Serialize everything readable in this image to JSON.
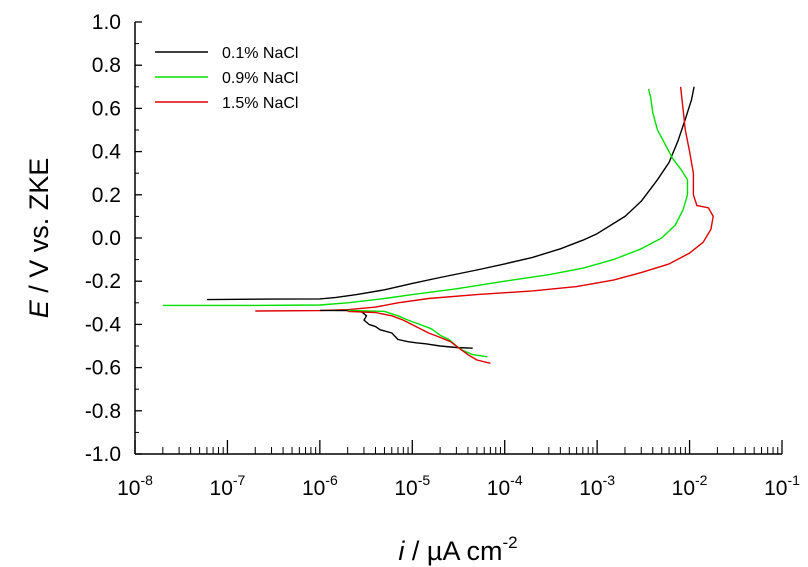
{
  "chart_data": {
    "type": "line",
    "title": "",
    "xscale": "log",
    "xlim": [
      1e-08,
      0.1
    ],
    "ylim": [
      -1.0,
      1.0
    ],
    "grid": false,
    "legend_position": "top-left",
    "xlabel": {
      "italic": "i",
      "rest": " / µA cm",
      "sup": "-2"
    },
    "ylabel": {
      "italic": "E",
      "rest": " / V vs. ZKE"
    },
    "x_ticks": [
      {
        "exp": "-8",
        "value": 1e-08
      },
      {
        "exp": "-7",
        "value": 1e-07
      },
      {
        "exp": "-6",
        "value": 1e-06
      },
      {
        "exp": "-5",
        "value": 1e-05
      },
      {
        "exp": "-4",
        "value": 0.0001
      },
      {
        "exp": "-3",
        "value": 0.001
      },
      {
        "exp": "-2",
        "value": 0.01
      },
      {
        "exp": "-1",
        "value": 0.1
      }
    ],
    "x_tick_base": "10",
    "y_ticks": [
      "-1.0",
      "-0.8",
      "-0.6",
      "-0.4",
      "-0.2",
      "0.0",
      "0.2",
      "0.4",
      "0.6",
      "0.8",
      "1.0"
    ],
    "series": [
      {
        "name": "0.1% NaCl",
        "color": "#000000",
        "points": [
          [
            6e-08,
            -0.285
          ],
          [
            3e-07,
            -0.283
          ],
          [
            1e-06,
            -0.282
          ],
          [
            1.5e-06,
            -0.275
          ],
          [
            2.5e-06,
            -0.262
          ],
          [
            5e-06,
            -0.24
          ],
          [
            1e-05,
            -0.21
          ],
          [
            2e-05,
            -0.183
          ],
          [
            5e-05,
            -0.148
          ],
          [
            0.0001,
            -0.12
          ],
          [
            0.0002,
            -0.09
          ],
          [
            0.0004,
            -0.05
          ],
          [
            0.0007,
            -0.01
          ],
          [
            0.001,
            0.02
          ],
          [
            0.002,
            0.1
          ],
          [
            0.003,
            0.17
          ],
          [
            0.0045,
            0.27
          ],
          [
            0.006,
            0.35
          ],
          [
            0.0075,
            0.45
          ],
          [
            0.009,
            0.55
          ],
          [
            0.0105,
            0.64
          ],
          [
            0.0112,
            0.7
          ]
        ]
      },
      {
        "name": "0.9% NaCl",
        "color": "#00e000",
        "points": [
          [
            2e-08,
            -0.312
          ],
          [
            2e-07,
            -0.312
          ],
          [
            1e-06,
            -0.31
          ],
          [
            2e-06,
            -0.3
          ],
          [
            5e-06,
            -0.28
          ],
          [
            1e-05,
            -0.262
          ],
          [
            3e-05,
            -0.235
          ],
          [
            0.0001,
            -0.2
          ],
          [
            0.0003,
            -0.17
          ],
          [
            0.0007,
            -0.14
          ],
          [
            0.0015,
            -0.1
          ],
          [
            0.003,
            -0.05
          ],
          [
            0.005,
            0.0
          ],
          [
            0.007,
            0.06
          ],
          [
            0.0085,
            0.13
          ],
          [
            0.0095,
            0.2
          ],
          [
            0.0095,
            0.27
          ],
          [
            0.008,
            0.32
          ],
          [
            0.0065,
            0.37
          ],
          [
            0.0055,
            0.43
          ],
          [
            0.0045,
            0.5
          ],
          [
            0.004,
            0.58
          ],
          [
            0.0038,
            0.65
          ],
          [
            0.0036,
            0.69
          ]
        ]
      },
      {
        "name": "1.5% NaCl",
        "color": "#e00000",
        "points": [
          [
            2e-07,
            -0.338
          ],
          [
            1e-06,
            -0.336
          ],
          [
            2e-06,
            -0.332
          ],
          [
            4e-06,
            -0.32
          ],
          [
            7e-06,
            -0.3
          ],
          [
            1.5e-05,
            -0.28
          ],
          [
            5e-05,
            -0.262
          ],
          [
            0.0002,
            -0.245
          ],
          [
            0.0006,
            -0.225
          ],
          [
            0.0015,
            -0.195
          ],
          [
            0.003,
            -0.16
          ],
          [
            0.006,
            -0.12
          ],
          [
            0.01,
            -0.07
          ],
          [
            0.014,
            -0.02
          ],
          [
            0.017,
            0.04
          ],
          [
            0.018,
            0.1
          ],
          [
            0.016,
            0.14
          ],
          [
            0.012,
            0.15
          ],
          [
            0.011,
            0.2
          ],
          [
            0.011,
            0.3
          ],
          [
            0.01,
            0.4
          ],
          [
            0.009,
            0.5
          ],
          [
            0.0085,
            0.6
          ],
          [
            0.008,
            0.7
          ]
        ]
      },
      {
        "name": "",
        "color": "#000000",
        "points": [
          [
            1e-06,
            -0.335
          ],
          [
            2e-06,
            -0.336
          ],
          [
            2.8e-06,
            -0.34
          ],
          [
            3.2e-06,
            -0.36
          ],
          [
            3e-06,
            -0.38
          ],
          [
            3.4e-06,
            -0.4
          ],
          [
            4e-06,
            -0.41
          ],
          [
            4.5e-06,
            -0.425
          ],
          [
            6e-06,
            -0.44
          ],
          [
            7e-06,
            -0.47
          ],
          [
            9e-06,
            -0.48
          ],
          [
            1.1e-05,
            -0.485
          ],
          [
            1.4e-05,
            -0.49
          ],
          [
            2e-05,
            -0.5
          ],
          [
            3e-05,
            -0.507
          ],
          [
            4.5e-05,
            -0.51
          ]
        ]
      },
      {
        "name": "",
        "color": "#00e000",
        "points": [
          [
            2e-06,
            -0.335
          ],
          [
            5e-06,
            -0.34
          ],
          [
            7e-06,
            -0.36
          ],
          [
            9e-06,
            -0.38
          ],
          [
            1.2e-05,
            -0.4
          ],
          [
            1.6e-05,
            -0.42
          ],
          [
            2e-05,
            -0.45
          ],
          [
            2.5e-05,
            -0.47
          ],
          [
            3e-05,
            -0.5
          ],
          [
            3.5e-05,
            -0.52
          ],
          [
            4.5e-05,
            -0.54
          ],
          [
            6.5e-05,
            -0.55
          ]
        ]
      },
      {
        "name": "",
        "color": "#e00000",
        "points": [
          [
            2e-06,
            -0.34
          ],
          [
            4e-06,
            -0.345
          ],
          [
            6e-06,
            -0.36
          ],
          [
            8e-06,
            -0.38
          ],
          [
            1.1e-05,
            -0.41
          ],
          [
            1.5e-05,
            -0.44
          ],
          [
            2e-05,
            -0.46
          ],
          [
            2.6e-05,
            -0.48
          ],
          [
            3.2e-05,
            -0.51
          ],
          [
            4e-05,
            -0.54
          ],
          [
            5e-05,
            -0.565
          ],
          [
            7e-05,
            -0.58
          ]
        ]
      }
    ]
  }
}
